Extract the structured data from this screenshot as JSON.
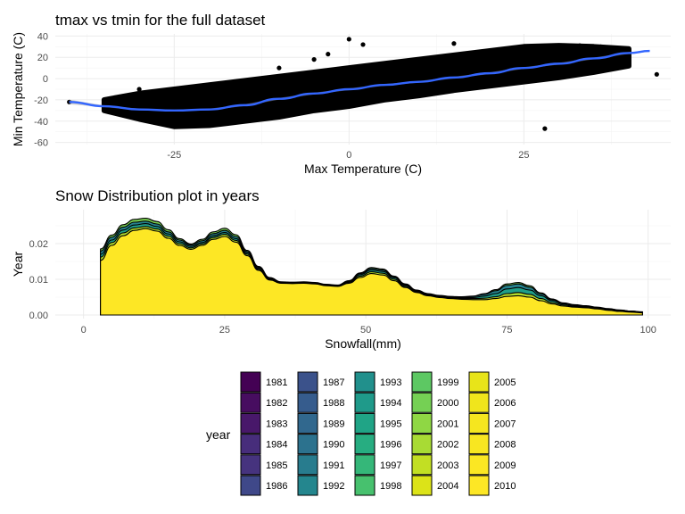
{
  "chart_data": [
    {
      "type": "scatter",
      "title": "tmax vs tmin for the full dataset",
      "xlabel": "Max Temperature (C)",
      "ylabel": "Min Temperature (C)",
      "xlim": [
        -42,
        46
      ],
      "ylim": [
        -62,
        42
      ],
      "x_ticks": [
        -25,
        0,
        25
      ],
      "x_tick_labels": [
        "-25",
        "0",
        "25"
      ],
      "y_ticks": [
        -60,
        -40,
        -20,
        0,
        20,
        40
      ],
      "y_tick_labels": [
        "-60",
        "-40",
        "-20",
        "0",
        "20",
        "40"
      ],
      "grid": true,
      "point_color": "#000000",
      "smooth_color": "#3366FF",
      "smooth": {
        "x": [
          -40,
          -35,
          -30,
          -25,
          -20,
          -15,
          -10,
          -5,
          0,
          5,
          10,
          15,
          20,
          25,
          30,
          35,
          40,
          43
        ],
        "y": [
          -22,
          -26,
          -29,
          -30,
          -29,
          -25,
          -19,
          -14,
          -10,
          -6,
          -3,
          1,
          5,
          10,
          14,
          19,
          24,
          26
        ]
      },
      "outliers": {
        "x": [
          -40,
          -30,
          -27,
          -24,
          -20,
          -17,
          -10,
          -5,
          -3,
          0,
          2,
          15,
          28,
          33,
          36,
          44
        ],
        "y": [
          -22,
          -10,
          -36,
          -40,
          -42,
          -12,
          10,
          18,
          23,
          37,
          32,
          33,
          -47,
          31,
          30,
          4
        ]
      },
      "cloud": {
        "x": [
          -35,
          -30,
          -25,
          -20,
          -15,
          -10,
          -5,
          0,
          5,
          10,
          15,
          20,
          25,
          30,
          35,
          40
        ],
        "y_low": [
          -30,
          -38,
          -45,
          -44,
          -40,
          -36,
          -30,
          -26,
          -20,
          -16,
          -11,
          -7,
          -3,
          1,
          6,
          12
        ],
        "y_high": [
          -20,
          -14,
          -10,
          -6,
          -2,
          2,
          6,
          10,
          14,
          18,
          22,
          26,
          30,
          31,
          30,
          28
        ]
      }
    },
    {
      "type": "area",
      "title": "Snow Distribution plot in years",
      "xlabel": "Snowfall(mm)",
      "ylabel": "Year",
      "xlim": [
        -5,
        104
      ],
      "ylim": [
        -0.001,
        0.0295
      ],
      "x_ticks": [
        0,
        25,
        50,
        75,
        100
      ],
      "x_tick_labels": [
        "0",
        "25",
        "50",
        "75",
        "100"
      ],
      "y_ticks": [
        0,
        0.01,
        0.02
      ],
      "y_tick_labels": [
        "0.00",
        "0.01",
        "0.02"
      ],
      "grid": true,
      "x": [
        3,
        5,
        7,
        9,
        11,
        13,
        15,
        17,
        19,
        21,
        23,
        25,
        27,
        29,
        31,
        33,
        35,
        37,
        39,
        41,
        43,
        45,
        47,
        49,
        51,
        53,
        55,
        57,
        59,
        61,
        63,
        65,
        67,
        69,
        71,
        73,
        75,
        77,
        79,
        81,
        83,
        85,
        87,
        89,
        91,
        93,
        95,
        97,
        99
      ],
      "series": [
        {
          "values": [
            0.0153,
            0.0195,
            0.0222,
            0.0237,
            0.0242,
            0.0235,
            0.0215,
            0.0195,
            0.0184,
            0.0195,
            0.0212,
            0.022,
            0.0204,
            0.0166,
            0.0125,
            0.0098,
            0.0089,
            0.0088,
            0.0089,
            0.0087,
            0.0082,
            0.008,
            0.0089,
            0.0105,
            0.0116,
            0.0112,
            0.0096,
            0.0077,
            0.0063,
            0.0054,
            0.0049,
            0.0046,
            0.0044,
            0.0043,
            0.0043,
            0.0046,
            0.0052,
            0.0054,
            0.005,
            0.004,
            0.0031,
            0.0025,
            0.0022,
            0.002,
            0.0017,
            0.0013,
            0.001,
            0.0008,
            0.0006
          ],
          "color": "#FDE725"
        },
        {
          "values": [
            0.0162,
            0.0203,
            0.023,
            0.0244,
            0.0248,
            0.0241,
            0.0221,
            0.02,
            0.0188,
            0.0199,
            0.0217,
            0.0226,
            0.0209,
            0.017,
            0.0128,
            0.01,
            0.009,
            0.0089,
            0.009,
            0.0088,
            0.0083,
            0.0081,
            0.0091,
            0.0109,
            0.0121,
            0.0117,
            0.01,
            0.008,
            0.0065,
            0.0056,
            0.0051,
            0.0048,
            0.0046,
            0.0046,
            0.0047,
            0.0051,
            0.006,
            0.0063,
            0.0058,
            0.0046,
            0.0035,
            0.0028,
            0.0024,
            0.0022,
            0.0019,
            0.0015,
            0.0012,
            0.0009,
            0.0007
          ],
          "color": "#B4DE2C"
        },
        {
          "values": [
            0.017,
            0.021,
            0.0238,
            0.0252,
            0.0256,
            0.0248,
            0.0227,
            0.0205,
            0.0192,
            0.0203,
            0.0222,
            0.0231,
            0.0214,
            0.0174,
            0.0131,
            0.0102,
            0.0091,
            0.009,
            0.0091,
            0.0089,
            0.0084,
            0.0082,
            0.0093,
            0.0113,
            0.0126,
            0.0122,
            0.0104,
            0.0083,
            0.0067,
            0.0058,
            0.0053,
            0.005,
            0.0048,
            0.0049,
            0.0053,
            0.006,
            0.0073,
            0.0077,
            0.007,
            0.0054,
            0.004,
            0.0031,
            0.0026,
            0.0023,
            0.002,
            0.0016,
            0.0013,
            0.001,
            0.0008
          ],
          "color": "#1F9E89"
        },
        {
          "values": [
            0.0179,
            0.0218,
            0.0246,
            0.026,
            0.0263,
            0.0255,
            0.0233,
            0.021,
            0.0196,
            0.0208,
            0.0228,
            0.0237,
            0.022,
            0.0178,
            0.0134,
            0.0104,
            0.0092,
            0.0091,
            0.0092,
            0.009,
            0.0085,
            0.0083,
            0.0095,
            0.0116,
            0.013,
            0.0126,
            0.0107,
            0.0085,
            0.0069,
            0.0059,
            0.0054,
            0.0051,
            0.005,
            0.0052,
            0.0058,
            0.0068,
            0.0083,
            0.0087,
            0.0078,
            0.0059,
            0.0043,
            0.0033,
            0.0028,
            0.0025,
            0.0021,
            0.0017,
            0.0014,
            0.0011,
            0.0008
          ],
          "color": "#26828E"
        },
        {
          "values": [
            0.0185,
            0.0224,
            0.0253,
            0.0268,
            0.0271,
            0.0262,
            0.0239,
            0.0214,
            0.0199,
            0.0212,
            0.0233,
            0.0243,
            0.0225,
            0.0181,
            0.0136,
            0.0105,
            0.0093,
            0.0092,
            0.0093,
            0.0091,
            0.0086,
            0.0084,
            0.0096,
            0.0118,
            0.0133,
            0.0129,
            0.0109,
            0.0087,
            0.007,
            0.006,
            0.0055,
            0.0052,
            0.0051,
            0.0053,
            0.006,
            0.0071,
            0.0087,
            0.0091,
            0.0082,
            0.0062,
            0.0045,
            0.0034,
            0.0029,
            0.0026,
            0.0022,
            0.0018,
            0.0014,
            0.0011,
            0.0009
          ],
          "color": "#7AD151"
        }
      ]
    }
  ],
  "legend": {
    "title": "year",
    "entries": [
      {
        "label": "1981",
        "color": "#440154"
      },
      {
        "label": "1982",
        "color": "#470D60"
      },
      {
        "label": "1983",
        "color": "#48186A"
      },
      {
        "label": "1984",
        "color": "#472D7B"
      },
      {
        "label": "1985",
        "color": "#46337E"
      },
      {
        "label": "1986",
        "color": "#3F4889"
      },
      {
        "label": "1987",
        "color": "#3B528B"
      },
      {
        "label": "1988",
        "color": "#365C8D"
      },
      {
        "label": "1989",
        "color": "#31688E"
      },
      {
        "label": "1990",
        "color": "#2C728E"
      },
      {
        "label": "1991",
        "color": "#287C8E"
      },
      {
        "label": "1992",
        "color": "#24868E"
      },
      {
        "label": "1993",
        "color": "#21908C"
      },
      {
        "label": "1994",
        "color": "#1F9A8A"
      },
      {
        "label": "1995",
        "color": "#20A486"
      },
      {
        "label": "1996",
        "color": "#27AD81"
      },
      {
        "label": "1997",
        "color": "#35B779"
      },
      {
        "label": "1998",
        "color": "#47C16E"
      },
      {
        "label": "1999",
        "color": "#5DC863"
      },
      {
        "label": "2000",
        "color": "#75D054"
      },
      {
        "label": "2001",
        "color": "#8FD744"
      },
      {
        "label": "2002",
        "color": "#A8DB34"
      },
      {
        "label": "2003",
        "color": "#C2DF23"
      },
      {
        "label": "2004",
        "color": "#DCE318"
      },
      {
        "label": "2005",
        "color": "#E8E419"
      },
      {
        "label": "2006",
        "color": "#F0E51C"
      },
      {
        "label": "2007",
        "color": "#F5E61F"
      },
      {
        "label": "2008",
        "color": "#F8E621"
      },
      {
        "label": "2009",
        "color": "#FBE723"
      },
      {
        "label": "2010",
        "color": "#FDE725"
      }
    ]
  }
}
